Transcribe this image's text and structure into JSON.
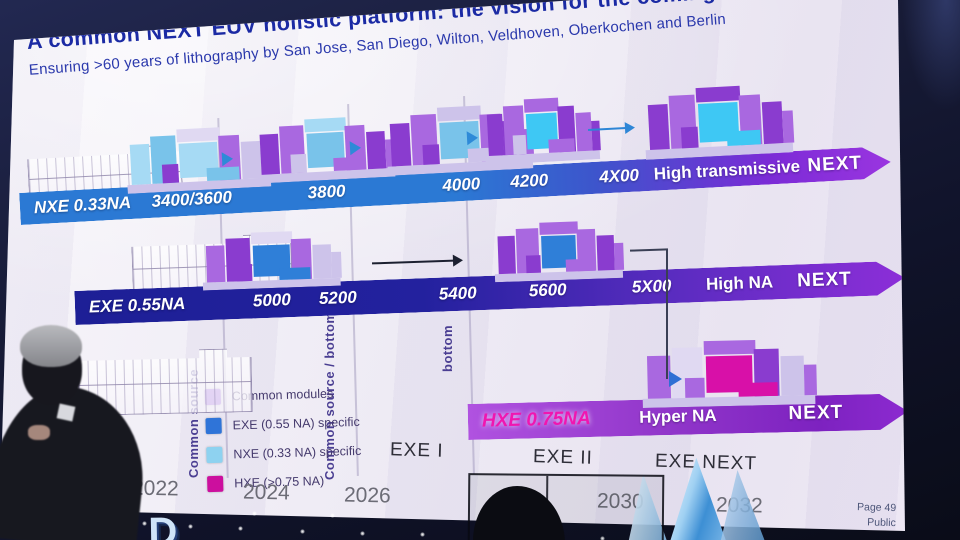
{
  "slide": {
    "title": "A common NEXT EUV holistic platform: the vision for the coming decade",
    "subtitle": "Ensuring >60 years of lithography by San Jose, San Diego, Wilton, Veldhoven, Oberkochen and Berlin",
    "footer": {
      "page": "Page 49",
      "classification": "Public"
    }
  },
  "roadmap": {
    "rows": [
      {
        "platform": "NXE 0.33NA",
        "milestones": [
          "3400/3600",
          "3800",
          "4000",
          "4200",
          "4X00"
        ],
        "future_label": "High transmissive",
        "next_label": "NEXT"
      },
      {
        "platform": "EXE 0.55NA",
        "milestones": [
          "5000",
          "5200",
          "5400",
          "5600",
          "5X00"
        ],
        "future_label": "High NA",
        "next_label": "NEXT"
      },
      {
        "platform": "HXE 0.75NA",
        "milestones": [],
        "future_label": "Hyper NA",
        "next_label": "NEXT"
      }
    ],
    "vertical_labels": [
      "Common source",
      "Common source / bottom",
      "bottom"
    ],
    "phases": [
      "EXE I",
      "EXE II",
      "EXE NEXT"
    ],
    "years": [
      "2022",
      "2024",
      "2026",
      "2030",
      "2032"
    ]
  },
  "legend": {
    "items": [
      {
        "label": "Common modules",
        "color": "#8b4bd8"
      },
      {
        "label": "EXE (0.55 NA) specific",
        "color": "#2f74d8"
      },
      {
        "label": "NXE (0.33 NA) specific",
        "color": "#8ed2f0"
      },
      {
        "label": "HXE (>0.75 NA)",
        "color": "#cc0f9e"
      }
    ]
  },
  "stage": {
    "backdrop_text": "ORLD"
  }
}
